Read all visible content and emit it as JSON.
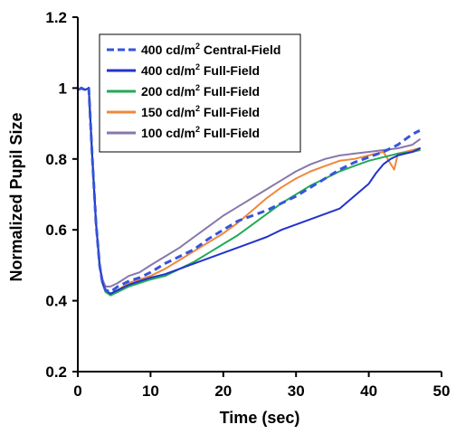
{
  "chart_data": {
    "type": "line",
    "xlabel": "Time (sec)",
    "ylabel": "Normalized Pupil Size",
    "xlim": [
      0,
      50
    ],
    "ylim": [
      0.2,
      1.2
    ],
    "xticks": [
      "0",
      "10",
      "20",
      "30",
      "40",
      "50"
    ],
    "yticks": [
      "0.2",
      "0.4",
      "0.6",
      "0.8",
      "1",
      "1.2"
    ],
    "grid": false,
    "legend": "top-left",
    "series": [
      {
        "name": "400 cd/m² Central-Field",
        "name_main": "400 cd/m",
        "name_sup": "2",
        "name_rest": " Central-Field",
        "color": "#3355dd",
        "dashed": true,
        "points": [
          [
            0,
            0.995
          ],
          [
            0.5,
            1.0
          ],
          [
            1,
            0.995
          ],
          [
            1.5,
            1.0
          ],
          [
            2,
            0.8
          ],
          [
            2.5,
            0.62
          ],
          [
            3,
            0.5
          ],
          [
            3.4,
            0.45
          ],
          [
            3.8,
            0.43
          ],
          [
            4.5,
            0.425
          ],
          [
            5.5,
            0.44
          ],
          [
            7,
            0.455
          ],
          [
            8.5,
            0.465
          ],
          [
            10,
            0.48
          ],
          [
            12,
            0.505
          ],
          [
            14,
            0.525
          ],
          [
            16,
            0.545
          ],
          [
            18,
            0.575
          ],
          [
            20,
            0.6
          ],
          [
            22,
            0.625
          ],
          [
            24,
            0.64
          ],
          [
            26,
            0.655
          ],
          [
            28,
            0.675
          ],
          [
            30,
            0.695
          ],
          [
            32,
            0.72
          ],
          [
            34,
            0.745
          ],
          [
            36,
            0.77
          ],
          [
            38,
            0.79
          ],
          [
            40,
            0.805
          ],
          [
            42,
            0.82
          ],
          [
            44,
            0.84
          ],
          [
            45,
            0.855
          ],
          [
            46,
            0.87
          ],
          [
            47,
            0.88
          ]
        ]
      },
      {
        "name": "400 cd/m² Full-Field",
        "name_main": "400 cd/m",
        "name_sup": "2",
        "name_rest": " Full-Field",
        "color": "#2233cc",
        "dashed": false,
        "points": [
          [
            0,
            0.995
          ],
          [
            0.5,
            1.0
          ],
          [
            1,
            0.995
          ],
          [
            1.5,
            1.0
          ],
          [
            2,
            0.8
          ],
          [
            2.5,
            0.62
          ],
          [
            3,
            0.5
          ],
          [
            3.4,
            0.45
          ],
          [
            3.8,
            0.43
          ],
          [
            4.5,
            0.42
          ],
          [
            5.5,
            0.43
          ],
          [
            7,
            0.445
          ],
          [
            8.5,
            0.455
          ],
          [
            10,
            0.465
          ],
          [
            12,
            0.475
          ],
          [
            14,
            0.49
          ],
          [
            16,
            0.505
          ],
          [
            18,
            0.52
          ],
          [
            20,
            0.535
          ],
          [
            22,
            0.55
          ],
          [
            24,
            0.565
          ],
          [
            26,
            0.58
          ],
          [
            28,
            0.6
          ],
          [
            30,
            0.615
          ],
          [
            32,
            0.63
          ],
          [
            34,
            0.645
          ],
          [
            36,
            0.66
          ],
          [
            38,
            0.695
          ],
          [
            40,
            0.73
          ],
          [
            41,
            0.76
          ],
          [
            42,
            0.785
          ],
          [
            43,
            0.8
          ],
          [
            44,
            0.81
          ],
          [
            45,
            0.815
          ],
          [
            46,
            0.82
          ],
          [
            47,
            0.83
          ]
        ]
      },
      {
        "name": "200 cd/m² Full-Field",
        "name_main": "200 cd/m",
        "name_sup": "2",
        "name_rest": " Full-Field",
        "color": "#22aa55",
        "dashed": false,
        "points": [
          [
            0,
            0.995
          ],
          [
            0.5,
            1.0
          ],
          [
            1,
            0.995
          ],
          [
            1.5,
            1.0
          ],
          [
            2,
            0.8
          ],
          [
            2.5,
            0.62
          ],
          [
            3,
            0.5
          ],
          [
            3.4,
            0.45
          ],
          [
            3.8,
            0.425
          ],
          [
            4.5,
            0.415
          ],
          [
            5.5,
            0.425
          ],
          [
            7,
            0.44
          ],
          [
            8.5,
            0.45
          ],
          [
            10,
            0.46
          ],
          [
            12,
            0.47
          ],
          [
            14,
            0.49
          ],
          [
            16,
            0.51
          ],
          [
            18,
            0.535
          ],
          [
            20,
            0.56
          ],
          [
            22,
            0.585
          ],
          [
            24,
            0.615
          ],
          [
            26,
            0.645
          ],
          [
            28,
            0.675
          ],
          [
            30,
            0.7
          ],
          [
            32,
            0.725
          ],
          [
            34,
            0.745
          ],
          [
            36,
            0.765
          ],
          [
            38,
            0.78
          ],
          [
            40,
            0.795
          ],
          [
            42,
            0.805
          ],
          [
            44,
            0.815
          ],
          [
            46,
            0.82
          ],
          [
            47,
            0.825
          ]
        ]
      },
      {
        "name": "150 cd/m² Full-Field",
        "name_main": "150 cd/m",
        "name_sup": "2",
        "name_rest": " Full-Field",
        "color": "#f0883a",
        "dashed": false,
        "points": [
          [
            0,
            0.995
          ],
          [
            0.5,
            1.0
          ],
          [
            1,
            0.995
          ],
          [
            1.5,
            1.0
          ],
          [
            2,
            0.8
          ],
          [
            2.5,
            0.62
          ],
          [
            3,
            0.5
          ],
          [
            3.4,
            0.45
          ],
          [
            3.8,
            0.425
          ],
          [
            4.5,
            0.42
          ],
          [
            5.5,
            0.43
          ],
          [
            7,
            0.45
          ],
          [
            8.5,
            0.46
          ],
          [
            10,
            0.47
          ],
          [
            12,
            0.49
          ],
          [
            14,
            0.515
          ],
          [
            16,
            0.54
          ],
          [
            18,
            0.565
          ],
          [
            20,
            0.59
          ],
          [
            22,
            0.62
          ],
          [
            24,
            0.655
          ],
          [
            26,
            0.69
          ],
          [
            28,
            0.72
          ],
          [
            30,
            0.745
          ],
          [
            32,
            0.765
          ],
          [
            34,
            0.78
          ],
          [
            36,
            0.795
          ],
          [
            38,
            0.8
          ],
          [
            40,
            0.81
          ],
          [
            42,
            0.82
          ],
          [
            43.5,
            0.77
          ],
          [
            44,
            0.815
          ],
          [
            46,
            0.825
          ],
          [
            47,
            0.83
          ]
        ]
      },
      {
        "name": "100 cd/m² Full-Field",
        "name_main": "100 cd/m",
        "name_sup": "2",
        "name_rest": " Full-Field",
        "color": "#8877aa",
        "dashed": false,
        "points": [
          [
            0,
            0.995
          ],
          [
            0.5,
            1.0
          ],
          [
            1,
            0.995
          ],
          [
            1.5,
            1.0
          ],
          [
            2,
            0.8
          ],
          [
            2.5,
            0.62
          ],
          [
            3,
            0.5
          ],
          [
            3.4,
            0.46
          ],
          [
            3.8,
            0.44
          ],
          [
            4.5,
            0.44
          ],
          [
            5.5,
            0.45
          ],
          [
            7,
            0.47
          ],
          [
            8.5,
            0.48
          ],
          [
            10,
            0.5
          ],
          [
            12,
            0.525
          ],
          [
            14,
            0.55
          ],
          [
            16,
            0.58
          ],
          [
            18,
            0.61
          ],
          [
            20,
            0.64
          ],
          [
            22,
            0.665
          ],
          [
            24,
            0.69
          ],
          [
            26,
            0.715
          ],
          [
            28,
            0.74
          ],
          [
            30,
            0.765
          ],
          [
            32,
            0.785
          ],
          [
            34,
            0.8
          ],
          [
            36,
            0.81
          ],
          [
            38,
            0.815
          ],
          [
            40,
            0.82
          ],
          [
            42,
            0.825
          ],
          [
            44,
            0.83
          ],
          [
            46,
            0.84
          ],
          [
            47,
            0.855
          ]
        ]
      }
    ]
  }
}
